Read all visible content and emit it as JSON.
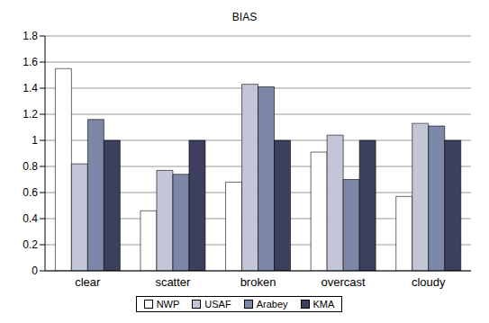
{
  "chart_data": {
    "type": "bar",
    "title": "BIAS",
    "categories": [
      "clear",
      "scatter",
      "broken",
      "overcast",
      "cloudy"
    ],
    "series": [
      {
        "name": "NWP",
        "color": "#ffffff",
        "values": [
          1.55,
          0.46,
          0.68,
          0.91,
          0.57
        ]
      },
      {
        "name": "USAF",
        "color": "#c3c6d6",
        "values": [
          0.82,
          0.77,
          1.43,
          1.04,
          1.13
        ]
      },
      {
        "name": "Arabey",
        "color": "#7d88a8",
        "values": [
          1.16,
          0.74,
          1.41,
          0.7,
          1.11
        ]
      },
      {
        "name": "KMA",
        "color": "#3c3f5e",
        "values": [
          1.0,
          1.0,
          1.0,
          1.0,
          1.0
        ]
      }
    ],
    "ylim": [
      0,
      1.8
    ],
    "yticks": [
      0,
      0.2,
      0.4,
      0.6,
      0.8,
      1,
      1.2,
      1.4,
      1.6,
      1.8
    ],
    "grid": true,
    "legend": "bottom"
  }
}
